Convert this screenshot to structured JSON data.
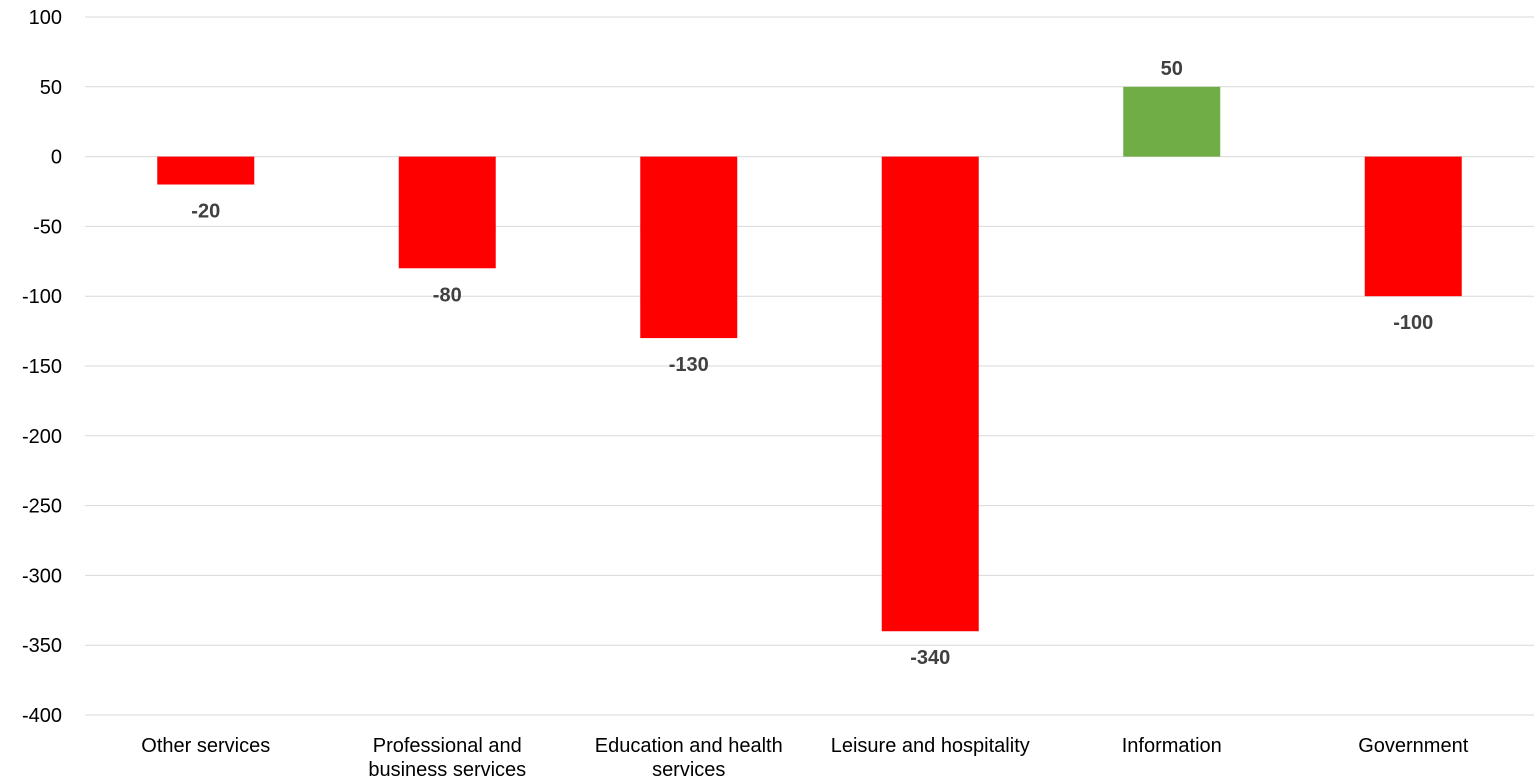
{
  "chart_data": {
    "type": "bar",
    "title": "",
    "xlabel": "",
    "ylabel": "",
    "categories": [
      "Other services",
      "Professional and business services",
      "Education and health services",
      "Leisure and hospitality",
      "Information",
      "Government"
    ],
    "category_lines": [
      [
        "Other services"
      ],
      [
        "Professional and",
        "business services"
      ],
      [
        "Education and health",
        "services"
      ],
      [
        "Leisure and hospitality"
      ],
      [
        "Information"
      ],
      [
        "Government"
      ]
    ],
    "values": [
      -20,
      -80,
      -130,
      -340,
      50,
      -100
    ],
    "data_labels": [
      "-20",
      "-80",
      "-130",
      "-340",
      "50",
      "-100"
    ],
    "ylim": [
      -400,
      100
    ],
    "y_ticks": [
      100,
      50,
      0,
      -50,
      -100,
      -150,
      -200,
      -250,
      -300,
      -350,
      -400
    ],
    "grid": true,
    "legend": "none",
    "colors": {
      "negative": "#ff0000",
      "positive": "#70ad47",
      "gridline": "#d9d9d9",
      "data_label": "#404040",
      "tick_label": "#000000"
    }
  }
}
